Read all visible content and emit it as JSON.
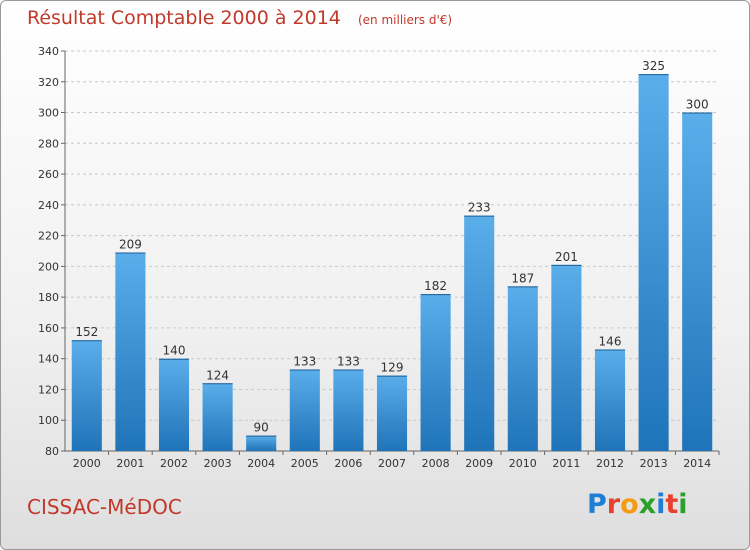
{
  "header": {
    "title": "Résultat Comptable 2000 à 2014",
    "unit": "(en milliers d'€)"
  },
  "footer": {
    "commune": "CISSAC-MéDOC",
    "brand_letters": [
      "P",
      "r",
      "o",
      "x",
      "i",
      "t",
      "i"
    ],
    "brand_colors": [
      "#1f7fd6",
      "#e8402c",
      "#f39c12",
      "#2ca02c",
      "#1f7fd6",
      "#e8402c",
      "#2ca02c"
    ]
  },
  "chart_data": {
    "type": "bar",
    "categories": [
      "2000",
      "2001",
      "2002",
      "2003",
      "2004",
      "2005",
      "2006",
      "2007",
      "2008",
      "2009",
      "2010",
      "2011",
      "2012",
      "2013",
      "2014"
    ],
    "values": [
      152,
      209,
      140,
      124,
      90,
      133,
      133,
      129,
      182,
      233,
      187,
      201,
      146,
      325,
      300
    ],
    "title": "Résultat Comptable 2000 à 2014",
    "xlabel": "",
    "ylabel": "",
    "ylim": [
      80,
      340
    ],
    "yticks": [
      80,
      100,
      120,
      140,
      160,
      180,
      200,
      220,
      240,
      260,
      280,
      300,
      320,
      340
    ],
    "grid": true,
    "bar_color": "#3d9ae0"
  }
}
